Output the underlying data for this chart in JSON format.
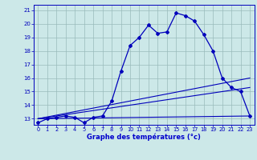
{
  "bg_color": "#cce8e8",
  "line_color": "#0000bb",
  "grid_color": "#99bbbb",
  "xlabel": "Graphe des températures (°c)",
  "xlabel_color": "#0000cc",
  "ylabel_ticks": [
    13,
    14,
    15,
    16,
    17,
    18,
    19,
    20,
    21
  ],
  "ylim": [
    12.55,
    21.4
  ],
  "xlim": [
    -0.5,
    23.5
  ],
  "xticks": [
    0,
    1,
    2,
    3,
    4,
    5,
    6,
    7,
    8,
    9,
    10,
    11,
    12,
    13,
    14,
    15,
    16,
    17,
    18,
    19,
    20,
    21,
    22,
    23
  ],
  "main_series": {
    "x": [
      0,
      1,
      2,
      3,
      4,
      5,
      6,
      7,
      8,
      9,
      10,
      11,
      12,
      13,
      14,
      15,
      16,
      17,
      18,
      19,
      20,
      21,
      22,
      23
    ],
    "y": [
      12.7,
      13.0,
      13.1,
      13.2,
      13.1,
      12.7,
      13.1,
      13.2,
      14.3,
      16.5,
      18.4,
      19.0,
      19.9,
      19.3,
      19.4,
      20.8,
      20.6,
      20.2,
      19.2,
      18.0,
      16.0,
      15.3,
      15.0,
      13.2
    ]
  },
  "trend1": {
    "x": [
      0,
      23
    ],
    "y": [
      13.0,
      16.0
    ]
  },
  "trend2": {
    "x": [
      0,
      23
    ],
    "y": [
      13.0,
      15.3
    ]
  },
  "trend3": {
    "x": [
      0,
      23
    ],
    "y": [
      13.0,
      13.2
    ]
  }
}
